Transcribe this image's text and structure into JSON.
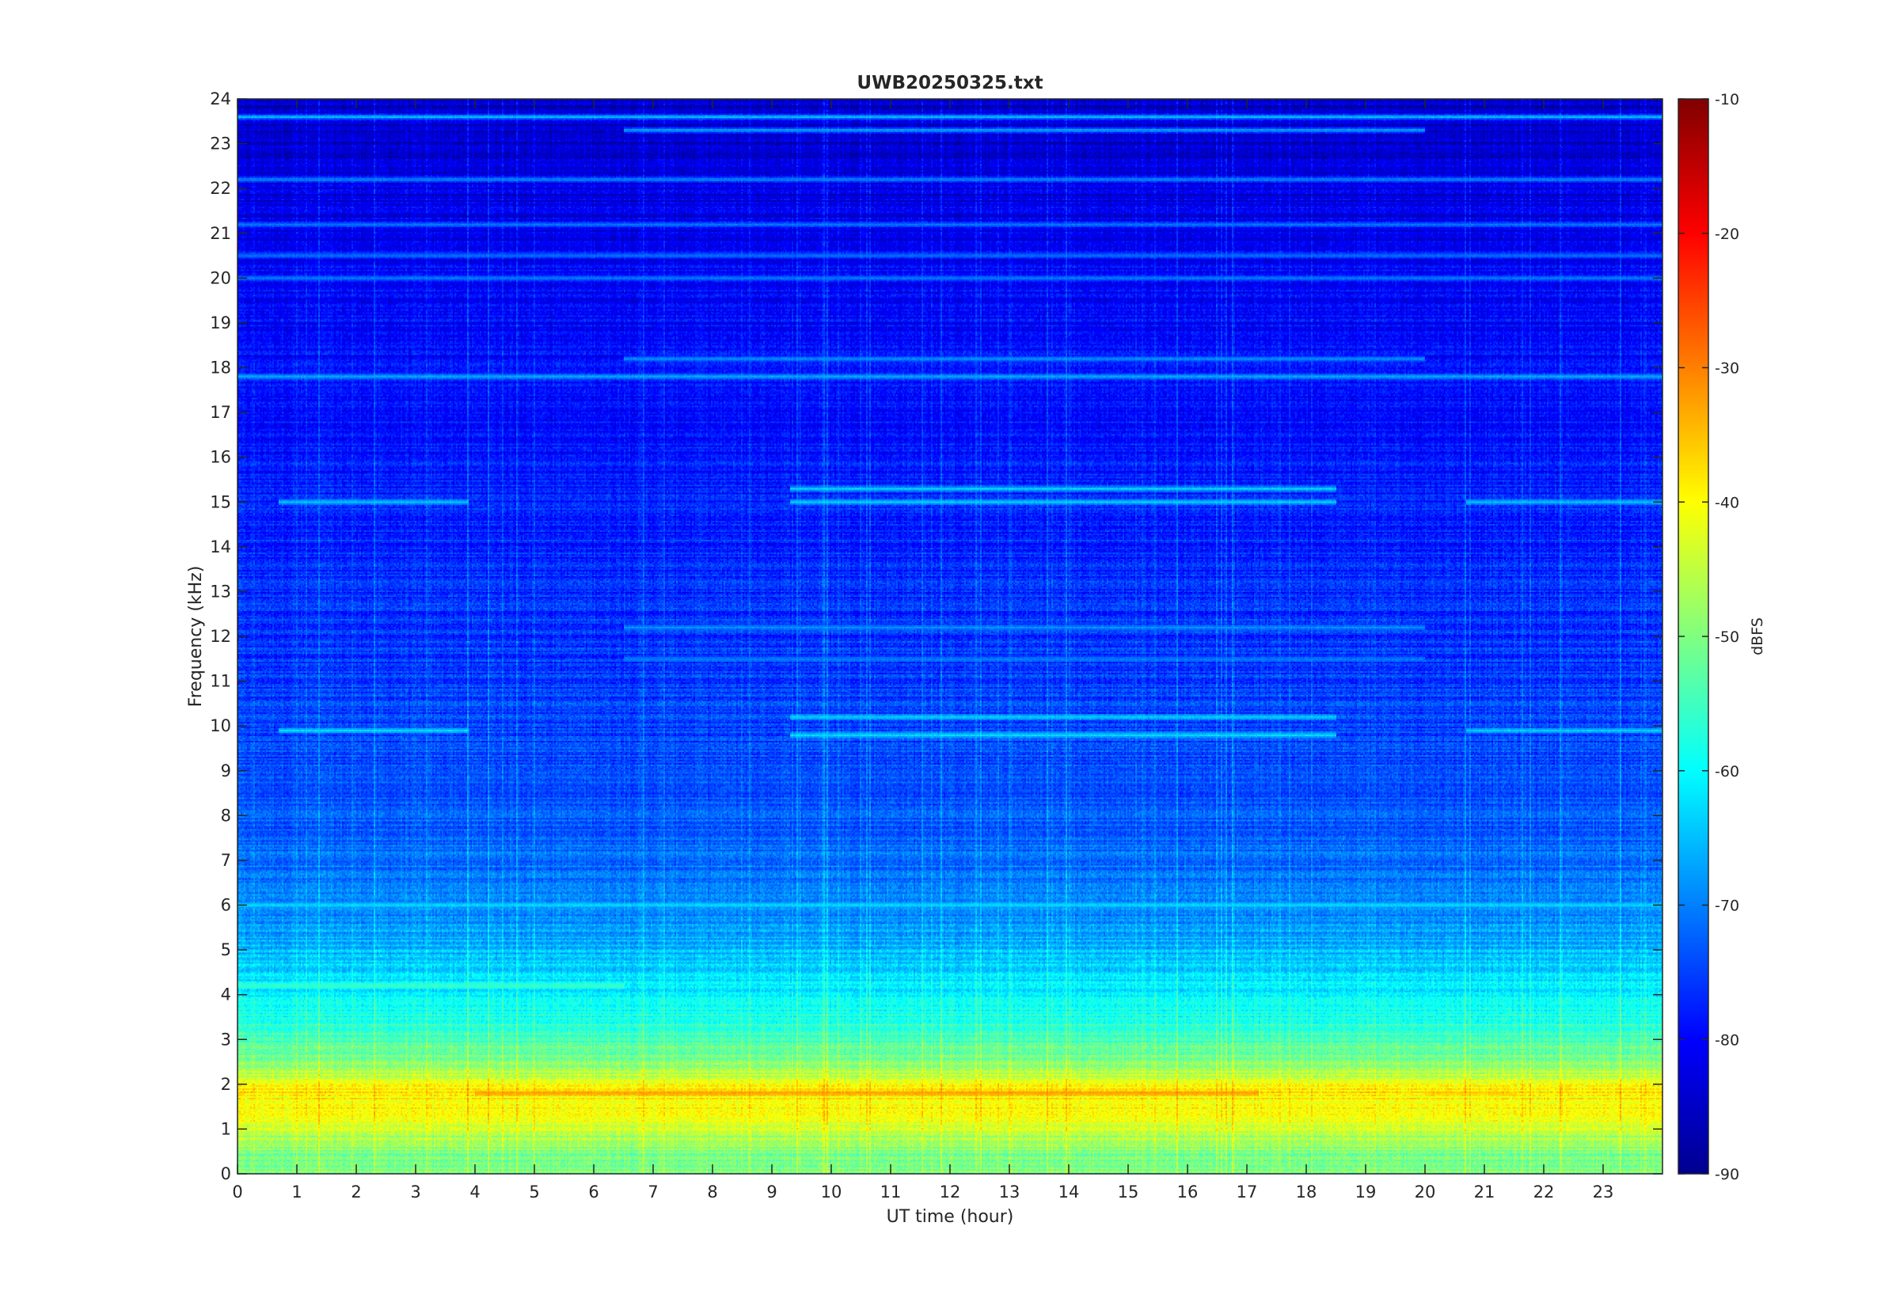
{
  "chart_data": {
    "type": "heatmap",
    "title": "UWB20250325.txt",
    "xlabel": "UT time (hour)",
    "ylabel": "Frequency (kHz)",
    "xlim": [
      0,
      24
    ],
    "ylim": [
      0,
      24
    ],
    "x_ticks": [
      "0",
      "1",
      "2",
      "3",
      "4",
      "5",
      "6",
      "7",
      "8",
      "9",
      "10",
      "11",
      "12",
      "13",
      "14",
      "15",
      "16",
      "17",
      "18",
      "19",
      "20",
      "21",
      "22",
      "23"
    ],
    "y_ticks": [
      "0",
      "1",
      "2",
      "3",
      "4",
      "5",
      "6",
      "7",
      "8",
      "9",
      "10",
      "11",
      "12",
      "13",
      "14",
      "15",
      "16",
      "17",
      "18",
      "19",
      "20",
      "21",
      "22",
      "23",
      "24"
    ],
    "colormap": "jet",
    "colorbar": {
      "label": "dBFS",
      "range": [
        -90,
        -10
      ],
      "ticks": [
        "-10",
        "-20",
        "-30",
        "-40",
        "-50",
        "-60",
        "-70",
        "-80",
        "-90"
      ]
    },
    "z_units": "dBFS",
    "approx_level_profile": [
      {
        "freq_khz": 0.5,
        "dbfs": -50
      },
      {
        "freq_khz": 1.0,
        "dbfs": -44
      },
      {
        "freq_khz": 1.8,
        "dbfs": -38
      },
      {
        "freq_khz": 2.5,
        "dbfs": -50
      },
      {
        "freq_khz": 3.5,
        "dbfs": -58
      },
      {
        "freq_khz": 4.5,
        "dbfs": -63
      },
      {
        "freq_khz": 6.0,
        "dbfs": -70
      },
      {
        "freq_khz": 9.0,
        "dbfs": -74
      },
      {
        "freq_khz": 14.0,
        "dbfs": -77
      },
      {
        "freq_khz": 20.0,
        "dbfs": -80
      },
      {
        "freq_khz": 23.5,
        "dbfs": -84
      }
    ],
    "tonal_features": [
      {
        "freq_khz": 1.8,
        "dbfs": -32,
        "hours": [
          4,
          17.2
        ]
      },
      {
        "freq_khz": 1.8,
        "dbfs": -36,
        "hours": [
          20,
          21.5
        ]
      },
      {
        "freq_khz": 4.2,
        "dbfs": -55,
        "hours": [
          0,
          6.5
        ]
      },
      {
        "freq_khz": 6.0,
        "dbfs": -62,
        "hours": [
          0,
          24
        ]
      },
      {
        "freq_khz": 9.8,
        "dbfs": -62,
        "hours": [
          9.3,
          18.5
        ]
      },
      {
        "freq_khz": 10.2,
        "dbfs": -63,
        "hours": [
          9.3,
          18.5
        ]
      },
      {
        "freq_khz": 9.9,
        "dbfs": -63,
        "hours": [
          0.7,
          3.9
        ]
      },
      {
        "freq_khz": 15.0,
        "dbfs": -62,
        "hours": [
          9.3,
          18.5
        ]
      },
      {
        "freq_khz": 15.3,
        "dbfs": -63,
        "hours": [
          9.3,
          18.5
        ]
      },
      {
        "freq_khz": 15.0,
        "dbfs": -63,
        "hours": [
          0.7,
          3.9
        ]
      },
      {
        "freq_khz": 15.0,
        "dbfs": -63,
        "hours": [
          20.7,
          24
        ]
      },
      {
        "freq_khz": 9.9,
        "dbfs": -64,
        "hours": [
          20.7,
          24
        ]
      },
      {
        "freq_khz": 12.2,
        "dbfs": -68,
        "hours": [
          6.5,
          20
        ]
      },
      {
        "freq_khz": 11.5,
        "dbfs": -70,
        "hours": [
          6.5,
          20
        ]
      },
      {
        "freq_khz": 17.8,
        "dbfs": -66,
        "hours": [
          0,
          24
        ]
      },
      {
        "freq_khz": 18.2,
        "dbfs": -68,
        "hours": [
          6.5,
          20
        ]
      },
      {
        "freq_khz": 20.0,
        "dbfs": -70,
        "hours": [
          0,
          24
        ]
      },
      {
        "freq_khz": 20.5,
        "dbfs": -70,
        "hours": [
          0,
          24
        ]
      },
      {
        "freq_khz": 21.2,
        "dbfs": -70,
        "hours": [
          0,
          24
        ]
      },
      {
        "freq_khz": 22.2,
        "dbfs": -68,
        "hours": [
          0,
          24
        ]
      },
      {
        "freq_khz": 23.3,
        "dbfs": -66,
        "hours": [
          6.5,
          20
        ]
      },
      {
        "freq_khz": 23.6,
        "dbfs": -64,
        "hours": [
          0,
          24
        ]
      }
    ]
  }
}
